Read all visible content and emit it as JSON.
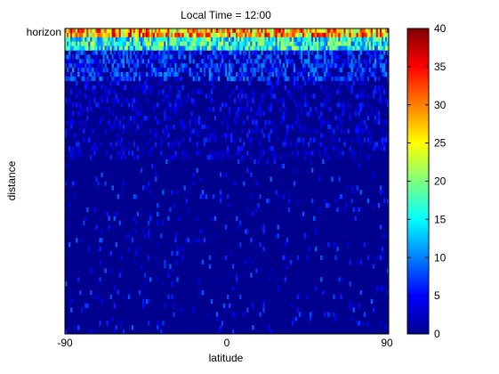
{
  "chart_data": {
    "type": "heatmap",
    "title": "Local Time = 12:00",
    "xlabel": "latitude",
    "ylabel": "distance",
    "xlim": [
      -90,
      90
    ],
    "x_ticks": [
      "-90",
      "0",
      "90"
    ],
    "y_tick_top": "horizon",
    "colorbar": {
      "colormap": "jet",
      "min": 0,
      "max": 40,
      "ticks": [
        "0",
        "5",
        "10",
        "15",
        "20",
        "25",
        "30",
        "35",
        "40"
      ]
    },
    "grid": {
      "columns": 180,
      "rows": 70,
      "background_value": 1,
      "description_of_distribution": "highest values at the horizon row (top), decaying with distance; sparse isolated cells below"
    }
  }
}
